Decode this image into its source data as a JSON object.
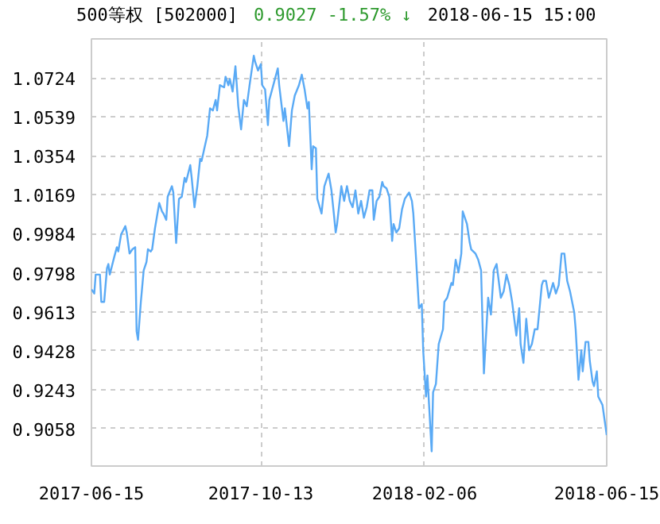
{
  "chart_data": {
    "type": "line",
    "title": "500等权 [502000]",
    "annotations": [
      "0.9027  -1.57% ↓",
      "2018-06-15 15:00"
    ],
    "x": [
      "2017-06-15",
      "2017-06-17",
      "2017-06-18",
      "2017-06-21",
      "2017-06-22",
      "2017-06-24",
      "2017-06-26",
      "2017-06-27",
      "2017-06-28",
      "2017-07-01",
      "2017-07-03",
      "2017-07-04",
      "2017-07-06",
      "2017-07-09",
      "2017-07-10",
      "2017-07-12",
      "2017-07-14",
      "2017-07-16",
      "2017-07-17",
      "2017-07-18",
      "2017-07-20",
      "2017-07-22",
      "2017-07-24",
      "2017-07-25",
      "2017-07-27",
      "2017-07-28",
      "2017-07-30",
      "2017-08-02",
      "2017-08-04",
      "2017-08-05",
      "2017-08-07",
      "2017-08-08",
      "2017-08-11",
      "2017-08-12",
      "2017-08-14",
      "2017-08-16",
      "2017-08-18",
      "2017-08-20",
      "2017-08-21",
      "2017-08-24",
      "2017-08-25",
      "2017-08-27",
      "2017-08-29",
      "2017-08-31",
      "2017-09-01",
      "2017-09-04",
      "2017-09-05",
      "2017-09-07",
      "2017-09-09",
      "2017-09-11",
      "2017-09-12",
      "2017-09-14",
      "2017-09-17",
      "2017-09-18",
      "2017-09-20",
      "2017-09-21",
      "2017-09-23",
      "2017-09-25",
      "2017-09-27",
      "2017-09-29",
      "2017-10-01",
      "2017-10-03",
      "2017-10-05",
      "2017-10-08",
      "2017-10-09",
      "2017-10-11",
      "2017-10-13",
      "2017-10-14",
      "2017-10-16",
      "2017-10-18",
      "2017-10-19",
      "2017-10-21",
      "2017-10-23",
      "2017-10-25",
      "2017-10-26",
      "2017-10-29",
      "2017-10-30",
      "2017-11-02",
      "2017-11-04",
      "2017-11-06",
      "2017-11-09",
      "2017-11-11",
      "2017-11-13",
      "2017-11-15",
      "2017-11-16",
      "2017-11-18",
      "2017-11-19",
      "2017-11-21",
      "2017-11-22",
      "2017-11-25",
      "2017-11-27",
      "2017-11-28",
      "2017-11-30",
      "2017-12-02",
      "2017-12-04",
      "2017-12-05",
      "2017-12-06",
      "2017-12-09",
      "2017-12-11",
      "2017-12-13",
      "2017-12-15",
      "2017-12-17",
      "2017-12-19",
      "2017-12-21",
      "2017-12-23",
      "2017-12-25",
      "2017-12-27",
      "2017-12-29",
      "2017-12-31",
      "2018-01-01",
      "2018-01-03",
      "2018-01-05",
      "2018-01-07",
      "2018-01-08",
      "2018-01-10",
      "2018-01-12",
      "2018-01-14",
      "2018-01-15",
      "2018-01-17",
      "2018-01-19",
      "2018-01-21",
      "2018-01-23",
      "2018-01-26",
      "2018-01-28",
      "2018-01-29",
      "2018-01-31",
      "2018-02-02",
      "2018-02-04",
      "2018-02-05",
      "2018-02-07",
      "2018-02-08",
      "2018-02-11",
      "2018-02-12",
      "2018-02-14",
      "2018-02-16",
      "2018-02-19",
      "2018-02-20",
      "2018-02-22",
      "2018-02-25",
      "2018-02-26",
      "2018-02-28",
      "2018-03-02",
      "2018-03-04",
      "2018-03-05",
      "2018-03-08",
      "2018-03-10",
      "2018-03-11",
      "2018-03-14",
      "2018-03-16",
      "2018-03-18",
      "2018-03-20",
      "2018-03-23",
      "2018-03-25",
      "2018-03-27",
      "2018-03-29",
      "2018-04-01",
      "2018-04-03",
      "2018-04-05",
      "2018-04-07",
      "2018-04-09",
      "2018-04-12",
      "2018-04-14",
      "2018-04-15",
      "2018-04-17",
      "2018-04-19",
      "2018-04-21",
      "2018-04-23",
      "2018-04-25",
      "2018-04-27",
      "2018-04-30",
      "2018-05-01",
      "2018-05-03",
      "2018-05-05",
      "2018-05-08",
      "2018-05-10",
      "2018-05-12",
      "2018-05-14",
      "2018-05-16",
      "2018-05-18",
      "2018-05-20",
      "2018-05-23",
      "2018-05-24",
      "2018-05-26",
      "2018-05-28",
      "2018-05-29",
      "2018-05-31",
      "2018-06-02",
      "2018-06-03",
      "2018-06-05",
      "2018-06-06",
      "2018-06-08",
      "2018-06-09",
      "2018-06-12",
      "2018-06-15"
    ],
    "series": [
      {
        "color": "#5aaaf5",
        "values": [
          0.972,
          0.97,
          0.979,
          0.979,
          0.966,
          0.966,
          0.982,
          0.984,
          0.979,
          0.987,
          0.992,
          0.99,
          0.998,
          1.002,
          0.999,
          0.989,
          0.991,
          0.992,
          0.952,
          0.948,
          0.966,
          0.981,
          0.985,
          0.991,
          0.99,
          0.991,
          1.001,
          1.013,
          1.009,
          1.008,
          1.005,
          1.016,
          1.021,
          1.018,
          0.994,
          1.015,
          1.016,
          1.025,
          1.023,
          1.031,
          1.025,
          1.011,
          1.021,
          1.034,
          1.033,
          1.042,
          1.045,
          1.058,
          1.057,
          1.062,
          1.057,
          1.069,
          1.068,
          1.073,
          1.069,
          1.072,
          1.066,
          1.078,
          1.059,
          1.048,
          1.062,
          1.059,
          1.069,
          1.083,
          1.08,
          1.076,
          1.079,
          1.069,
          1.067,
          1.05,
          1.062,
          1.067,
          1.072,
          1.077,
          1.069,
          1.052,
          1.058,
          1.04,
          1.057,
          1.064,
          1.069,
          1.074,
          1.067,
          1.058,
          1.061,
          1.029,
          1.04,
          1.039,
          1.015,
          1.008,
          1.021,
          1.023,
          1.027,
          1.019,
          1.006,
          0.999,
          1.003,
          1.021,
          1.014,
          1.021,
          1.014,
          1.011,
          1.019,
          1.008,
          1.014,
          1.006,
          1.011,
          1.019,
          1.019,
          1.005,
          1.014,
          1.016,
          1.023,
          1.021,
          1.02,
          1.016,
          0.995,
          1.003,
          0.999,
          1.001,
          1.01,
          1.015,
          1.018,
          1.014,
          1.008,
          0.986,
          0.963,
          0.965,
          0.943,
          0.921,
          0.931,
          0.895,
          0.923,
          0.927,
          0.946,
          0.953,
          0.966,
          0.968,
          0.975,
          0.974,
          0.986,
          0.98,
          0.989,
          1.009,
          1.003,
          0.994,
          0.991,
          0.989,
          0.986,
          0.981,
          0.932,
          0.968,
          0.96,
          0.981,
          0.984,
          0.968,
          0.971,
          0.979,
          0.974,
          0.966,
          0.95,
          0.963,
          0.946,
          0.937,
          0.958,
          0.943,
          0.946,
          0.953,
          0.953,
          0.974,
          0.976,
          0.976,
          0.968,
          0.975,
          0.97,
          0.974,
          0.989,
          0.989,
          0.976,
          0.971,
          0.961,
          0.953,
          0.929,
          0.943,
          0.933,
          0.947,
          0.947,
          0.938,
          0.928,
          0.926,
          0.933,
          0.921,
          0.917,
          0.9027
        ]
      }
    ],
    "xlim": [
      "2017-06-15",
      "2018-06-15"
    ],
    "xticks": [
      "2017-06-15",
      "2017-10-13",
      "2018-02-06",
      "2018-06-15"
    ],
    "ylim": [
      0.888,
      1.091
    ],
    "yticks": [
      0.9058,
      0.9243,
      0.9428,
      0.9613,
      0.9798,
      0.9984,
      1.0169,
      1.0354,
      1.0539,
      1.0724
    ],
    "grid": true,
    "line_style": "solid"
  }
}
